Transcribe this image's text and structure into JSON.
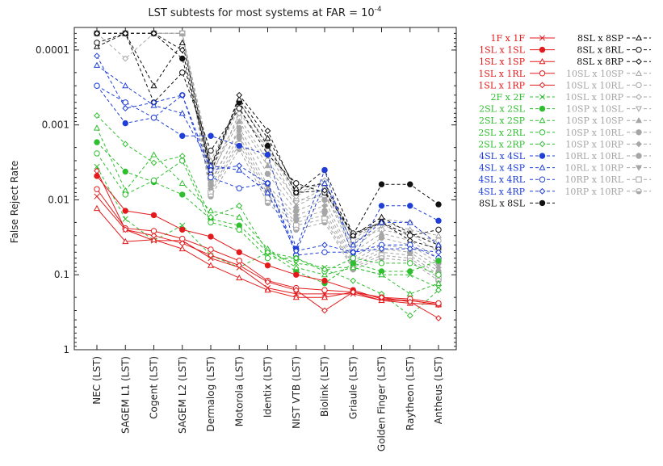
{
  "chart_data": {
    "type": "line",
    "title": "LST subtests for most systems at FAR = 10",
    "title_superscript": "-4",
    "ylabel": "False Reject Rate",
    "xlabel": "",
    "y_scale": "log",
    "y_reversed": true,
    "ylim": [
      5e-05,
      1
    ],
    "y_ticks": [
      {
        "value": 0.0001,
        "label": "0.0001"
      },
      {
        "value": 0.001,
        "label": "0.001"
      },
      {
        "value": 0.01,
        "label": "0.01"
      },
      {
        "value": 0.1,
        "label": "0.1"
      },
      {
        "value": 1,
        "label": "1"
      }
    ],
    "grid": false,
    "legend_position": "right",
    "categories": [
      "NEC (LST)",
      "SAGEM L1 (LST)",
      "Cogent (LST)",
      "SAGEM L2 (LST)",
      "Dermalog (LST)",
      "Motorola (LST)",
      "Identix (LST)",
      "NIST VTB (LST)",
      "Biolink (LST)",
      "Griaule (LST)",
      "Golden Finger (LST)",
      "Raytheon (LST)",
      "Antheus (LST)"
    ],
    "series": [
      {
        "name": "1F  x  1F",
        "color": "#e31a1c",
        "dash": "solid",
        "marker": "x",
        "values": [
          0.009,
          0.025,
          0.035,
          0.035,
          0.06,
          0.08,
          0.15,
          0.18,
          0.18,
          0.18,
          0.22,
          0.22,
          0.25
        ]
      },
      {
        "name": "1SL x 1SL",
        "color": "#e31a1c",
        "dash": "solid",
        "marker": "circle-filled",
        "values": [
          0.0048,
          0.014,
          0.016,
          0.025,
          0.031,
          0.05,
          0.075,
          0.1,
          0.12,
          0.16,
          0.21,
          0.22,
          0.25
        ]
      },
      {
        "name": "1SL x 1SP",
        "color": "#e31a1c",
        "dash": "solid",
        "marker": "triangle",
        "values": [
          0.013,
          0.036,
          0.034,
          0.045,
          0.075,
          0.11,
          0.16,
          0.2,
          0.2,
          0.17,
          0.22,
          0.24,
          0.25
        ]
      },
      {
        "name": "1SL x 1RL",
        "color": "#e31a1c",
        "dash": "solid",
        "marker": "circle",
        "values": [
          0.0072,
          0.024,
          0.026,
          0.033,
          0.046,
          0.065,
          0.12,
          0.15,
          0.16,
          0.17,
          0.2,
          0.21,
          0.24
        ]
      },
      {
        "name": "1SL x 1RP",
        "color": "#e31a1c",
        "dash": "solid",
        "marker": "diamond",
        "values": [
          0.0041,
          0.025,
          0.03,
          0.038,
          0.055,
          0.075,
          0.125,
          0.16,
          0.3,
          0.17,
          0.2,
          0.23,
          0.38
        ]
      },
      {
        "name": "2F  x  2F",
        "color": "#2fbe2f",
        "dash": "dashed",
        "marker": "x",
        "values": [
          0.0036,
          0.018,
          0.035,
          0.022,
          0.055,
          0.08,
          0.05,
          0.07,
          0.08,
          0.08,
          0.1,
          0.1,
          0.15
        ]
      },
      {
        "name": "2SL x 2SL",
        "color": "#2fbe2f",
        "dash": "dashed",
        "marker": "circle-filled",
        "values": [
          0.0017,
          0.0042,
          0.0058,
          0.0085,
          0.018,
          0.022,
          0.05,
          0.09,
          0.13,
          0.07,
          0.09,
          0.09,
          0.065
        ]
      },
      {
        "name": "2SL x 2SP",
        "color": "#2fbe2f",
        "dash": "dashed",
        "marker": "triangle",
        "values": [
          0.0011,
          0.0075,
          0.0025,
          0.006,
          0.014,
          0.017,
          0.045,
          0.08,
          0.1,
          0.08,
          0.1,
          0.18,
          0.13
        ]
      },
      {
        "name": "2SL x 2RL",
        "color": "#2fbe2f",
        "dash": "dashed",
        "marker": "circle",
        "values": [
          0.0024,
          0.0085,
          0.0055,
          0.003,
          0.02,
          0.025,
          0.06,
          0.06,
          0.09,
          0.06,
          0.07,
          0.07,
          0.1
        ]
      },
      {
        "name": "2SL x 2RP",
        "color": "#2fbe2f",
        "dash": "dashed",
        "marker": "diamond",
        "values": [
          0.00075,
          0.0018,
          0.0032,
          0.0026,
          0.017,
          0.012,
          0.05,
          0.06,
          0.085,
          0.12,
          0.18,
          0.35,
          0.16
        ]
      },
      {
        "name": "4SL x 4SL",
        "color": "#1f3fd6",
        "dash": "dashed",
        "marker": "circle-filled",
        "values": [
          0.0003,
          0.00095,
          0.0008,
          0.0014,
          0.0014,
          0.0019,
          0.0025,
          0.045,
          0.004,
          0.06,
          0.012,
          0.012,
          0.019
        ]
      },
      {
        "name": "4SL x 4SP",
        "color": "#1f3fd6",
        "dash": "dashed",
        "marker": "triangle",
        "values": [
          0.00016,
          0.0003,
          0.00055,
          0.0007,
          0.0035,
          0.004,
          0.008,
          0.05,
          0.006,
          0.04,
          0.02,
          0.02,
          0.04
        ]
      },
      {
        "name": "4SL x 4RL",
        "color": "#1f3fd6",
        "dash": "dashed",
        "marker": "circle",
        "values": [
          0.0003,
          0.0005,
          0.0008,
          0.0004,
          0.005,
          0.007,
          0.006,
          0.055,
          0.05,
          0.05,
          0.04,
          0.04,
          0.06
        ]
      },
      {
        "name": "4SL x 4RP",
        "color": "#1f3fd6",
        "dash": "dashed",
        "marker": "diamond",
        "values": [
          0.00012,
          0.0006,
          0.0005,
          0.0004,
          0.004,
          0.0035,
          0.006,
          0.048,
          0.04,
          0.05,
          0.045,
          0.045,
          0.05
        ]
      },
      {
        "name": "8SL x 8SL",
        "color": "#111111",
        "dash": "dashed",
        "marker": "circle-filled",
        "values": [
          6e-05,
          6e-05,
          6e-05,
          0.00013,
          0.0037,
          0.0005,
          0.0019,
          0.008,
          0.004,
          0.029,
          0.0062,
          0.0062,
          0.0115
        ]
      },
      {
        "name": "8SL x 8SP",
        "color": "#111111",
        "dash": "dashed",
        "marker": "triangle",
        "values": [
          9e-05,
          6e-05,
          0.0003,
          8e-05,
          0.0035,
          0.00045,
          0.0015,
          0.007,
          0.006,
          0.03,
          0.017,
          0.028,
          0.04
        ]
      },
      {
        "name": "8SL x 8RL",
        "color": "#111111",
        "dash": "dashed",
        "marker": "circle",
        "values": [
          8e-05,
          6e-05,
          0.0005,
          0.0002,
          0.0022,
          0.0006,
          0.0025,
          0.006,
          0.008,
          0.028,
          0.02,
          0.03,
          0.025
        ]
      },
      {
        "name": "8SL x 8RP",
        "color": "#111111",
        "dash": "dashed",
        "marker": "diamond",
        "values": [
          6e-05,
          6e-05,
          6e-05,
          0.0001,
          0.0045,
          0.0004,
          0.0012,
          0.008,
          0.0075,
          0.03,
          0.02,
          0.035,
          0.045
        ]
      },
      {
        "name": "10SL x 10SP",
        "color": "#a6a6a6",
        "dash": "dashed",
        "marker": "triangle",
        "values": [
          6e-05,
          6e-05,
          6e-05,
          6e-05,
          0.003,
          0.0005,
          0.0018,
          0.008,
          0.006,
          0.033,
          0.02,
          0.025,
          0.03
        ]
      },
      {
        "name": "10SL x 10RL",
        "color": "#a6a6a6",
        "dash": "dashed",
        "marker": "circle",
        "values": [
          6e-05,
          6e-05,
          6e-05,
          6e-05,
          0.004,
          0.0008,
          0.003,
          0.01,
          0.009,
          0.035,
          0.025,
          0.03,
          0.035
        ]
      },
      {
        "name": "10SL x 10RP",
        "color": "#a6a6a6",
        "dash": "dashed",
        "marker": "diamond",
        "values": [
          6e-05,
          0.00013,
          6e-05,
          6e-05,
          0.005,
          0.0007,
          0.002,
          0.009,
          0.0055,
          0.04,
          0.018,
          0.02,
          0.04
        ]
      },
      {
        "name": "10SP x 10SL",
        "color": "#a6a6a6",
        "dash": "dashed",
        "marker": "triangle-down",
        "values": [
          6e-05,
          6e-05,
          6e-05,
          6e-05,
          0.0035,
          0.0006,
          0.0022,
          0.011,
          0.007,
          0.045,
          0.022,
          0.028,
          0.05
        ]
      },
      {
        "name": "10SP x 10SP",
        "color": "#a6a6a6",
        "dash": "dashed",
        "marker": "triangle-filled",
        "values": [
          6e-05,
          6e-05,
          6e-05,
          6e-05,
          0.0045,
          0.0009,
          0.0035,
          0.012,
          0.008,
          0.05,
          0.028,
          0.035,
          0.06
        ]
      },
      {
        "name": "10SP x 10RL",
        "color": "#a6a6a6",
        "dash": "dashed",
        "marker": "circle-filled",
        "values": [
          6e-05,
          6e-05,
          6e-05,
          6e-05,
          0.006,
          0.0011,
          0.0045,
          0.014,
          0.01,
          0.06,
          0.032,
          0.04,
          0.07
        ]
      },
      {
        "name": "10SP x 10RP",
        "color": "#a6a6a6",
        "dash": "dashed",
        "marker": "diamond-filled",
        "values": [
          6e-05,
          6e-05,
          6e-05,
          6e-05,
          0.0055,
          0.0012,
          0.0065,
          0.016,
          0.012,
          0.065,
          0.04,
          0.045,
          0.08
        ]
      },
      {
        "name": "10RL x 10RL",
        "color": "#a6a6a6",
        "dash": "dashed",
        "marker": "circle-filled",
        "values": [
          6e-05,
          6e-05,
          6e-05,
          6e-05,
          0.0065,
          0.0014,
          0.0075,
          0.018,
          0.014,
          0.07,
          0.045,
          0.05,
          0.09
        ]
      },
      {
        "name": "10RL x 10RP",
        "color": "#a6a6a6",
        "dash": "dashed",
        "marker": "triangle-down-filled",
        "values": [
          6e-05,
          6e-05,
          6e-05,
          6e-05,
          0.0075,
          0.0016,
          0.0085,
          0.02,
          0.016,
          0.075,
          0.05,
          0.055,
          0.1
        ]
      },
      {
        "name": "10RP x 10RL",
        "color": "#a6a6a6",
        "dash": "dashed",
        "marker": "square",
        "values": [
          6e-05,
          6e-05,
          6e-05,
          6e-05,
          0.008,
          0.0018,
          0.0095,
          0.022,
          0.018,
          0.08,
          0.055,
          0.06,
          0.11
        ]
      },
      {
        "name": "10RP x 10RP",
        "color": "#a6a6a6",
        "dash": "dashed",
        "marker": "half-circle",
        "values": [
          6e-05,
          6e-05,
          6e-05,
          6e-05,
          0.009,
          0.0021,
          0.011,
          0.025,
          0.02,
          0.085,
          0.06,
          0.065,
          0.12
        ]
      }
    ]
  }
}
